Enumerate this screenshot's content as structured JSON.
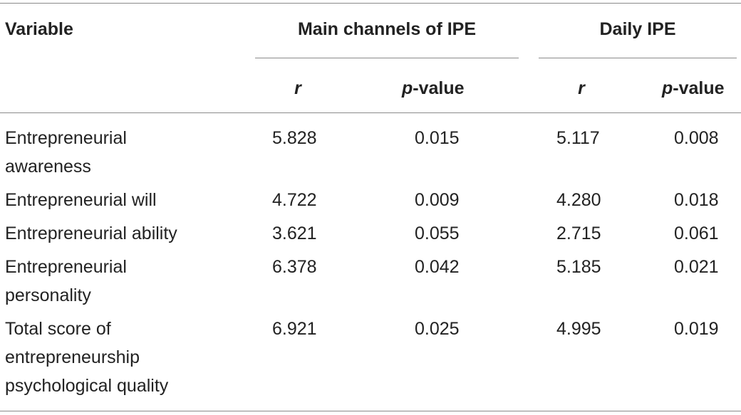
{
  "table": {
    "header": {
      "variable": "Variable",
      "group1": "Main channels of IPE",
      "group2": "Daily IPE",
      "r": "r",
      "p_italic": "p",
      "p_suffix": "-value"
    },
    "rows": [
      {
        "variable_lines": [
          "Entrepreneurial",
          "awareness"
        ],
        "r1": "5.828",
        "p1": "0.015",
        "r2": "5.117",
        "p2": "0.008"
      },
      {
        "variable_lines": [
          "Entrepreneurial will"
        ],
        "r1": "4.722",
        "p1": "0.009",
        "r2": "4.280",
        "p2": "0.018"
      },
      {
        "variable_lines": [
          "Entrepreneurial ability"
        ],
        "r1": "3.621",
        "p1": "0.055",
        "r2": "2.715",
        "p2": "0.061"
      },
      {
        "variable_lines": [
          "Entrepreneurial",
          "personality"
        ],
        "r1": "6.378",
        "p1": "0.042",
        "r2": "5.185",
        "p2": "0.021"
      },
      {
        "variable_lines": [
          "Total score of",
          "entrepreneurship",
          "psychological quality"
        ],
        "r1": "6.921",
        "p1": "0.025",
        "r2": "4.995",
        "p2": "0.019"
      }
    ]
  }
}
